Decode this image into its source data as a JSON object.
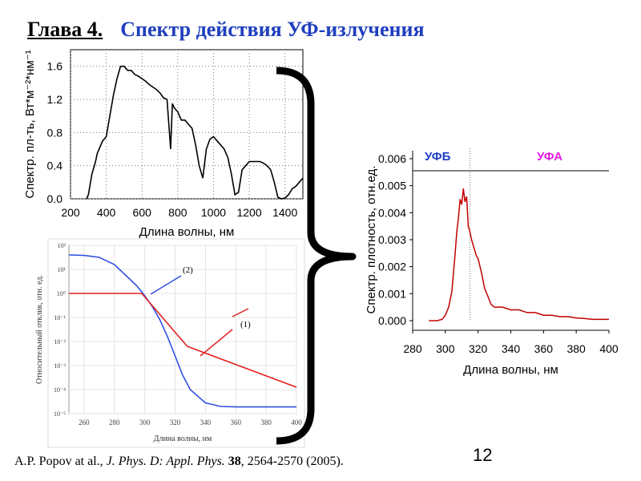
{
  "header": {
    "chapter": "Глава 4.",
    "topic": "Спектр действия УФ-излучения"
  },
  "footer": {
    "authors": "A.P. Popov at al., ",
    "journal": "J. Phys. D: Appl. Phys.",
    "volume": "38",
    "pages": ", 2564-2570 (2005)."
  },
  "page_number": "12",
  "colors": {
    "blue": "#1f3fbf",
    "red": "#e02020",
    "magenta": "#e020e0",
    "dark_red": "#c00000"
  },
  "chart_data": [
    {
      "type": "line",
      "xlabel": "Длина волны, нм",
      "ylabel": "Спектр. пл-ть, Вт*м⁻²*нм⁻¹",
      "xlim": [
        200,
        1500
      ],
      "ylim": [
        0,
        1.8
      ],
      "xticks": [
        "200",
        "400",
        "600",
        "800",
        "1000",
        "1200",
        "1400"
      ],
      "yticks": [
        "0.0",
        "0.4",
        "0.8",
        "1.2",
        "1.6"
      ],
      "grid": "dotted",
      "series": [
        {
          "x": [
            290,
            300,
            320,
            340,
            350,
            360,
            380,
            400,
            420,
            440,
            460,
            480,
            500,
            520,
            540,
            560,
            580,
            600,
            620,
            640,
            660,
            680,
            700,
            720,
            740,
            760,
            770,
            780,
            800,
            820,
            840,
            860,
            880,
            900,
            920,
            940,
            960,
            980,
            1000,
            1020,
            1040,
            1060,
            1080,
            1100,
            1120,
            1140,
            1160,
            1180,
            1200,
            1220,
            1240,
            1260,
            1280,
            1300,
            1320,
            1340,
            1360,
            1380,
            1400,
            1420,
            1440,
            1460,
            1480,
            1500
          ],
          "y": [
            0.0,
            0.05,
            0.3,
            0.45,
            0.55,
            0.6,
            0.7,
            0.75,
            1.0,
            1.25,
            1.45,
            1.6,
            1.6,
            1.55,
            1.55,
            1.5,
            1.48,
            1.45,
            1.42,
            1.38,
            1.35,
            1.32,
            1.28,
            1.22,
            1.2,
            0.6,
            1.15,
            1.1,
            1.05,
            0.95,
            0.95,
            0.9,
            0.85,
            0.65,
            0.4,
            0.25,
            0.6,
            0.72,
            0.75,
            0.7,
            0.65,
            0.6,
            0.5,
            0.3,
            0.05,
            0.08,
            0.35,
            0.4,
            0.45,
            0.45,
            0.45,
            0.45,
            0.43,
            0.4,
            0.35,
            0.2,
            0.02,
            0.0,
            0.01,
            0.05,
            0.12,
            0.15,
            0.2,
            0.25
          ]
        }
      ]
    },
    {
      "type": "line",
      "xlabel": "Длина волны, нм",
      "ylabel": "Относительный отклик, отн. ед.",
      "xlim": [
        250,
        400
      ],
      "ylim": [
        -5,
        2
      ],
      "yscale": "log",
      "xticks": [
        "260",
        "280",
        "300",
        "320",
        "340",
        "360",
        "380",
        "400"
      ],
      "yticks": [
        "10⁻⁵",
        "10⁻⁴",
        "10⁻³",
        "10⁻²",
        "10⁻¹",
        "10⁰",
        "10¹",
        "10²"
      ],
      "annotations": [
        "(1)",
        "(2)"
      ],
      "series": [
        {
          "color": "blue",
          "x": [
            250,
            260,
            270,
            280,
            290,
            295,
            300,
            305,
            310,
            315,
            320,
            325,
            330,
            340,
            350,
            360,
            370,
            380,
            390,
            400
          ],
          "y": [
            1.6,
            1.58,
            1.5,
            1.2,
            0.6,
            0.3,
            -0.1,
            -0.55,
            -1.1,
            -1.8,
            -2.6,
            -3.4,
            -4.0,
            -4.55,
            -4.7,
            -4.72,
            -4.72,
            -4.72,
            -4.72,
            -4.72
          ]
        },
        {
          "color": "red",
          "x": [
            250,
            298,
            328,
            400
          ],
          "y": [
            0.0,
            0.0,
            -2.2,
            -3.9
          ]
        }
      ]
    },
    {
      "type": "line",
      "xlabel": "Длина волны, нм",
      "ylabel": "Спектр. плотность, отн.ед.",
      "xlim": [
        280,
        400
      ],
      "ylim": [
        0,
        0.006
      ],
      "xticks": [
        "280",
        "300",
        "320",
        "340",
        "360",
        "380",
        "400"
      ],
      "yticks": [
        "0.000",
        "0.001",
        "0.002",
        "0.003",
        "0.004",
        "0.005",
        "0.006"
      ],
      "region_labels": [
        "УФБ",
        "УФА"
      ],
      "series": [
        {
          "color": "dark_red",
          "x": [
            290,
            295,
            298,
            300,
            302,
            304,
            305,
            306,
            307,
            308,
            309,
            310,
            311,
            312,
            313,
            314,
            315,
            316,
            317,
            318,
            319,
            320,
            322,
            324,
            326,
            328,
            330,
            335,
            340,
            345,
            350,
            355,
            360,
            365,
            370,
            375,
            380,
            385,
            390,
            395,
            400
          ],
          "y": [
            0.0,
            0.0,
            5e-05,
            0.0002,
            0.0005,
            0.0011,
            0.0018,
            0.0025,
            0.0033,
            0.0038,
            0.0045,
            0.0043,
            0.0049,
            0.0044,
            0.0046,
            0.0035,
            0.0033,
            0.003,
            0.0028,
            0.0026,
            0.0024,
            0.0023,
            0.0018,
            0.0012,
            0.0009,
            0.0006,
            0.0005,
            0.0005,
            0.0004,
            0.0004,
            0.0003,
            0.0003,
            0.0002,
            0.0002,
            0.00015,
            0.00015,
            0.0001,
            8e-05,
            5e-05,
            5e-05,
            5e-05
          ]
        }
      ]
    }
  ]
}
